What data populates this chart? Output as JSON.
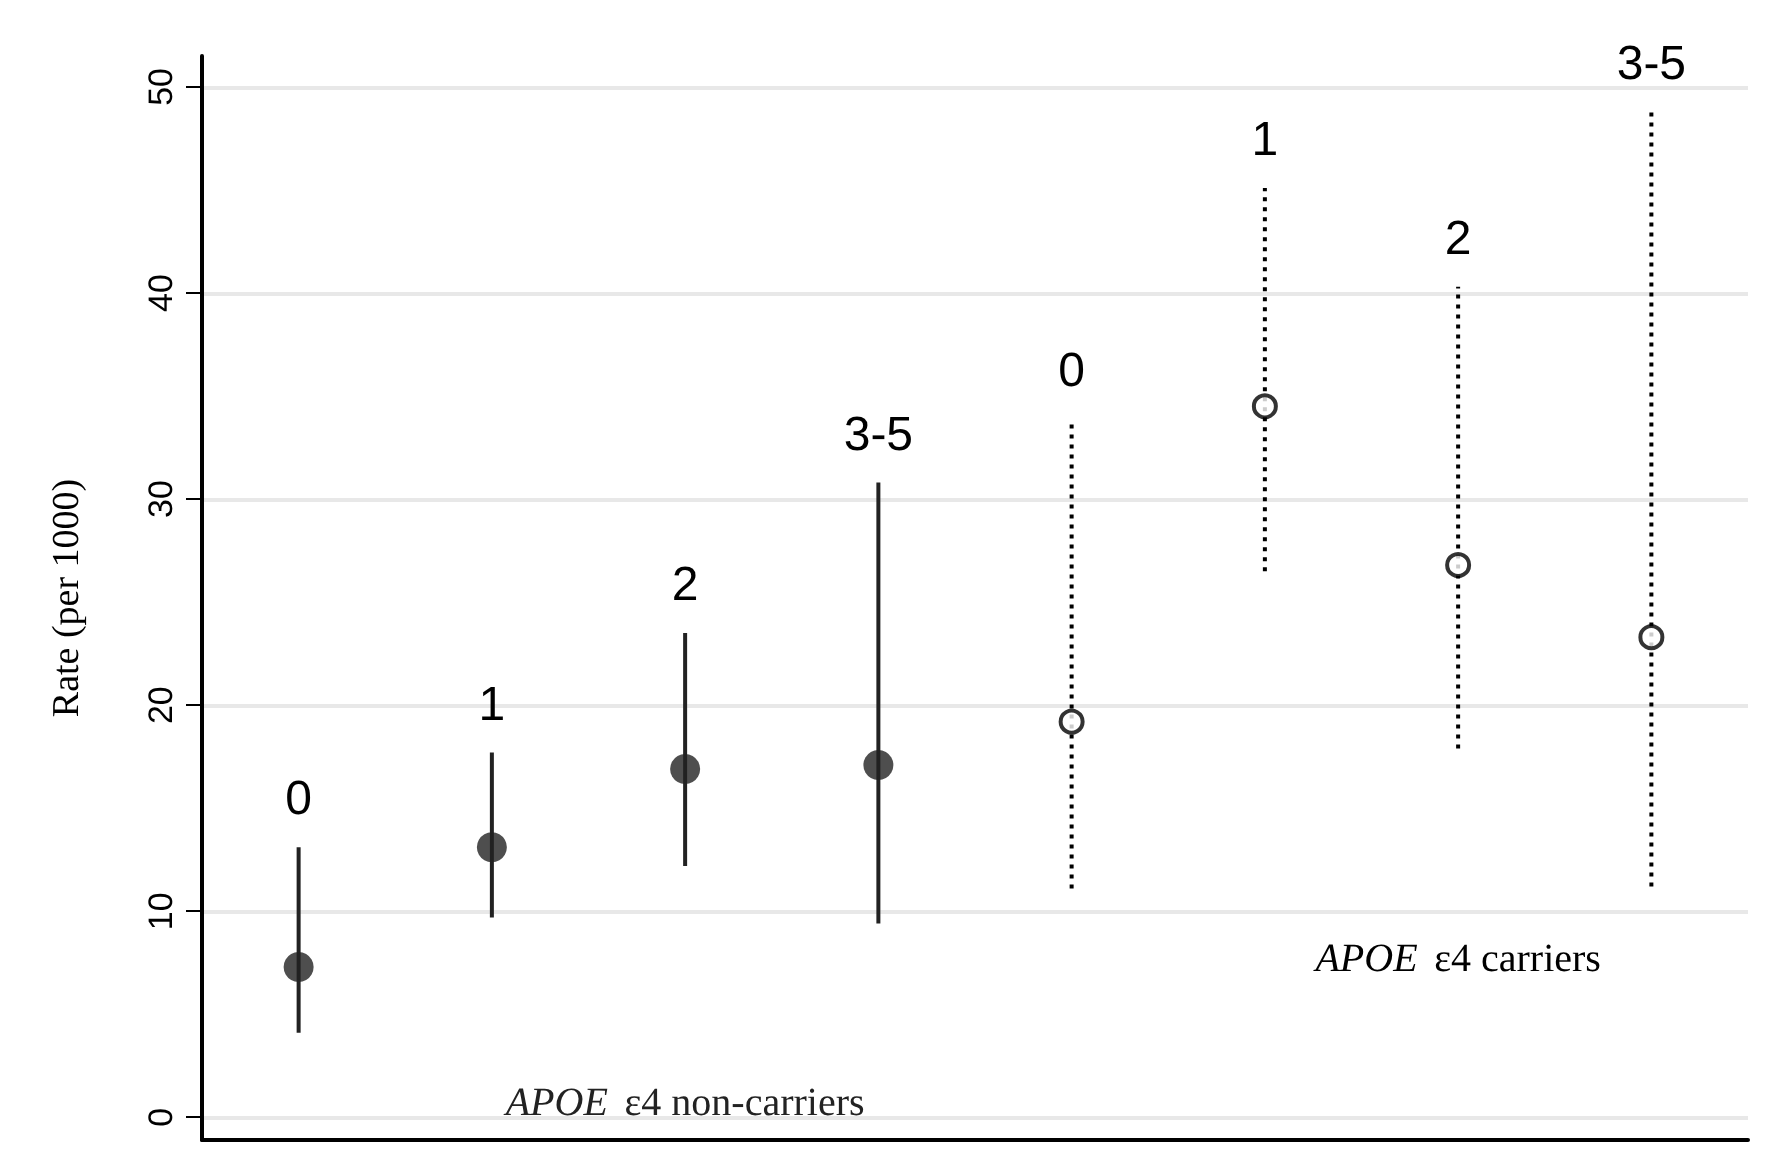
{
  "chart_data": {
    "type": "scatter",
    "ylabel": "Rate (per 1000)",
    "categories": [
      "0",
      "1",
      "2",
      "3-5",
      "0",
      "1",
      "2",
      "3-5"
    ],
    "ylim": [
      -1.1,
      51.5
    ],
    "yticks": [
      0,
      10,
      20,
      30,
      40,
      50
    ],
    "grid": "y",
    "legend": false,
    "series": [
      {
        "name": "APOE ε4 non-carriers",
        "color": "#222222",
        "marker": "circle",
        "line_style": "solid",
        "values": [
          7.3,
          13.1,
          16.9,
          17.1,
          null,
          null,
          null,
          null
        ],
        "errors": [
          [
            4.1,
            13.1
          ],
          [
            9.7,
            17.7
          ],
          [
            12.2,
            23.5
          ],
          [
            9.4,
            30.8
          ],
          null,
          null,
          null,
          null
        ]
      },
      {
        "name": "APOE ε4 carriers",
        "color": "#000000",
        "marker": "circle",
        "line_style": "dotted",
        "values": [
          null,
          null,
          null,
          null,
          19.2,
          34.5,
          26.8,
          23.3
        ],
        "errors": [
          null,
          null,
          null,
          null,
          [
            11.1,
            33.9
          ],
          [
            26.5,
            45.1
          ],
          [
            17.9,
            40.3
          ],
          [
            11.2,
            48.8
          ]
        ]
      }
    ]
  }
}
